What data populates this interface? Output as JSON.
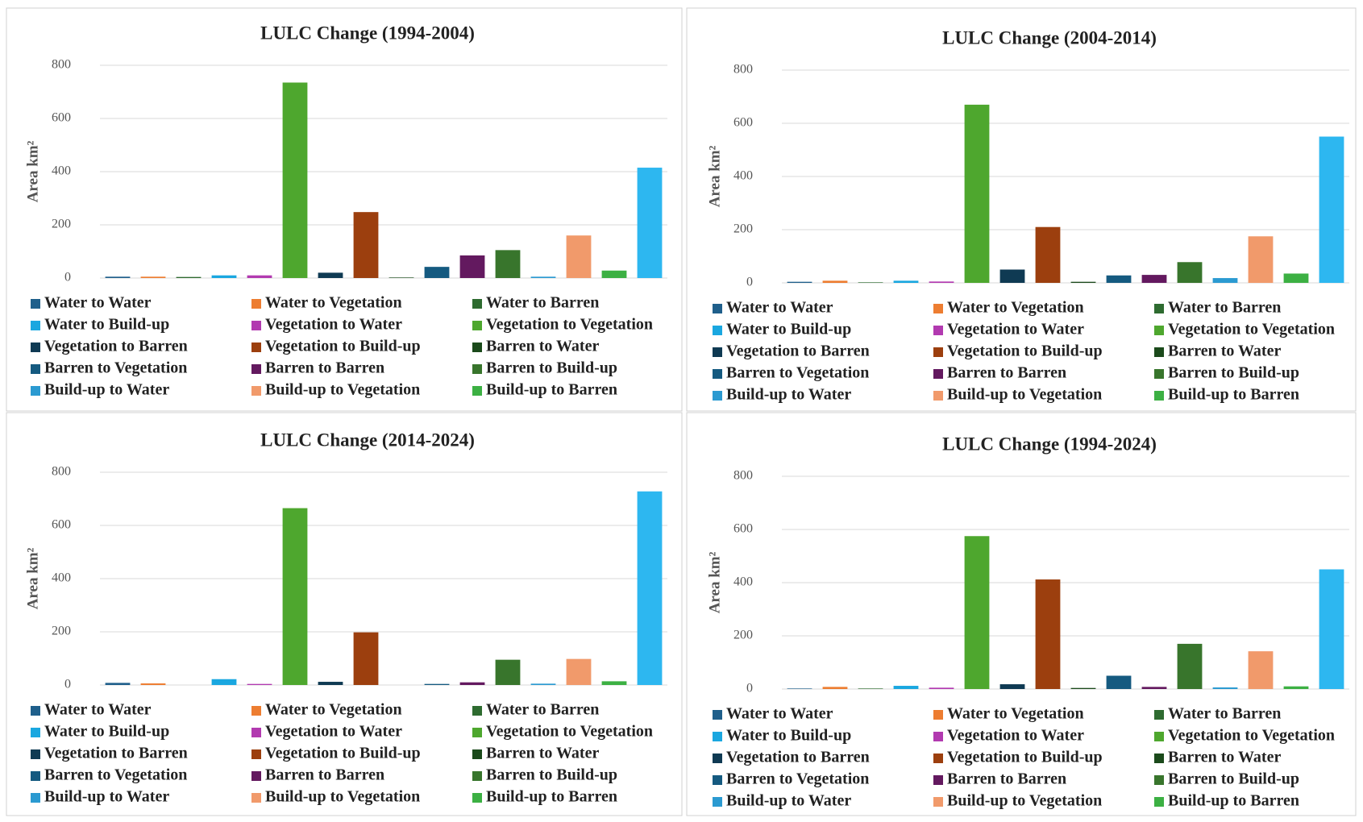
{
  "chart_data": [
    {
      "type": "bar",
      "title": "LULC Change (1994-2004)",
      "y_label": "Area km²",
      "ylim": [
        0,
        800
      ],
      "yticks": [
        0,
        200,
        400,
        600,
        800
      ],
      "grid": true,
      "series": [
        {
          "name": "Water to Water",
          "color": "#1f5f8b",
          "values": [
            5
          ]
        },
        {
          "name": "Water to Vegetation",
          "color": "#ed7d31",
          "values": [
            5
          ]
        },
        {
          "name": "Water to Barren",
          "color": "#2e6b30",
          "values": [
            4
          ]
        },
        {
          "name": "Water to Build-up",
          "color": "#1aa7e0",
          "values": [
            10
          ]
        },
        {
          "name": "Vegetation to Water",
          "color": "#b23ab0",
          "values": [
            10
          ]
        },
        {
          "name": "Vegetation to Vegetation",
          "color": "#4ea72e",
          "values": [
            735
          ]
        },
        {
          "name": "Vegetation to Barren",
          "color": "#0f3a53",
          "values": [
            20
          ]
        },
        {
          "name": "Vegetation to Build-up",
          "color": "#9c3f0e",
          "values": [
            248
          ]
        },
        {
          "name": "Barren to Water",
          "color": "#1b4a1b",
          "values": [
            2
          ]
        },
        {
          "name": "Barren to Vegetation",
          "color": "#155a80",
          "values": [
            42
          ]
        },
        {
          "name": "Barren to Barren",
          "color": "#63195f",
          "values": [
            85
          ]
        },
        {
          "name": "Barren to Build-up",
          "color": "#38752c",
          "values": [
            105
          ]
        },
        {
          "name": "Build-up to Water",
          "color": "#2b9ad1",
          "values": [
            5
          ]
        },
        {
          "name": "Build-up to Vegetation",
          "color": "#f19a6b",
          "values": [
            160
          ]
        },
        {
          "name": "Build-up to Barren",
          "color": "#3cb043",
          "values": [
            28
          ]
        },
        {
          "name": null,
          "color": "#2db7f0",
          "values": [
            415
          ]
        }
      ]
    },
    {
      "type": "bar",
      "title": "LULC Change (2004-2014)",
      "y_label": "Area km²",
      "ylim": [
        0,
        800
      ],
      "yticks": [
        0,
        200,
        400,
        600,
        800
      ],
      "grid": true,
      "series": [
        {
          "name": "Water to Water",
          "color": "#1f5f8b",
          "values": [
            4
          ]
        },
        {
          "name": "Water to Vegetation",
          "color": "#ed7d31",
          "values": [
            8
          ]
        },
        {
          "name": "Water to Barren",
          "color": "#2e6b30",
          "values": [
            2
          ]
        },
        {
          "name": "Water to Build-up",
          "color": "#1aa7e0",
          "values": [
            8
          ]
        },
        {
          "name": "Vegetation to Water",
          "color": "#b23ab0",
          "values": [
            5
          ]
        },
        {
          "name": "Vegetation to Vegetation",
          "color": "#4ea72e",
          "values": [
            670
          ]
        },
        {
          "name": "Vegetation to Barren",
          "color": "#0f3a53",
          "values": [
            50
          ]
        },
        {
          "name": "Vegetation to Build-up",
          "color": "#9c3f0e",
          "values": [
            210
          ]
        },
        {
          "name": "Barren to Water",
          "color": "#1b4a1b",
          "values": [
            4
          ]
        },
        {
          "name": "Barren to Vegetation",
          "color": "#155a80",
          "values": [
            28
          ]
        },
        {
          "name": "Barren to Barren",
          "color": "#63195f",
          "values": [
            30
          ]
        },
        {
          "name": "Barren to Build-up",
          "color": "#38752c",
          "values": [
            78
          ]
        },
        {
          "name": "Build-up to Water",
          "color": "#2b9ad1",
          "values": [
            18
          ]
        },
        {
          "name": "Build-up to Vegetation",
          "color": "#f19a6b",
          "values": [
            175
          ]
        },
        {
          "name": "Build-up to Barren",
          "color": "#3cb043",
          "values": [
            35
          ]
        },
        {
          "name": null,
          "color": "#2db7f0",
          "values": [
            550
          ]
        }
      ]
    },
    {
      "type": "bar",
      "title": "LULC Change (2014-2024)",
      "y_label": "Area km²",
      "ylim": [
        0,
        800
      ],
      "yticks": [
        0,
        200,
        400,
        600,
        800
      ],
      "grid": true,
      "series": [
        {
          "name": "Water to Water",
          "color": "#1f5f8b",
          "values": [
            8
          ]
        },
        {
          "name": "Water to Vegetation",
          "color": "#ed7d31",
          "values": [
            6
          ]
        },
        {
          "name": "Water to Barren",
          "color": "#2e6b30",
          "values": [
            0
          ]
        },
        {
          "name": "Water to Build-up",
          "color": "#1aa7e0",
          "values": [
            22
          ]
        },
        {
          "name": "Vegetation to Water",
          "color": "#b23ab0",
          "values": [
            4
          ]
        },
        {
          "name": "Vegetation to Vegetation",
          "color": "#4ea72e",
          "values": [
            665
          ]
        },
        {
          "name": "Vegetation to Barren",
          "color": "#0f3a53",
          "values": [
            12
          ]
        },
        {
          "name": "Vegetation to Build-up",
          "color": "#9c3f0e",
          "values": [
            198
          ]
        },
        {
          "name": "Barren to Water",
          "color": "#1b4a1b",
          "values": [
            0
          ]
        },
        {
          "name": "Barren to Vegetation",
          "color": "#155a80",
          "values": [
            4
          ]
        },
        {
          "name": "Barren to Barren",
          "color": "#63195f",
          "values": [
            10
          ]
        },
        {
          "name": "Barren to Build-up",
          "color": "#38752c",
          "values": [
            95
          ]
        },
        {
          "name": "Build-up to Water",
          "color": "#2b9ad1",
          "values": [
            5
          ]
        },
        {
          "name": "Build-up to Vegetation",
          "color": "#f19a6b",
          "values": [
            98
          ]
        },
        {
          "name": "Build-up to Barren",
          "color": "#3cb043",
          "values": [
            14
          ]
        },
        {
          "name": null,
          "color": "#2db7f0",
          "values": [
            728
          ]
        }
      ]
    },
    {
      "type": "bar",
      "title": "LULC Change (1994-2024)",
      "y_label": "Area km²",
      "ylim": [
        0,
        800
      ],
      "yticks": [
        0,
        200,
        400,
        600,
        800
      ],
      "grid": true,
      "series": [
        {
          "name": "Water to Water",
          "color": "#1f5f8b",
          "values": [
            2
          ]
        },
        {
          "name": "Water to Vegetation",
          "color": "#ed7d31",
          "values": [
            8
          ]
        },
        {
          "name": "Water to Barren",
          "color": "#2e6b30",
          "values": [
            2
          ]
        },
        {
          "name": "Water to Build-up",
          "color": "#1aa7e0",
          "values": [
            12
          ]
        },
        {
          "name": "Vegetation to Water",
          "color": "#b23ab0",
          "values": [
            5
          ]
        },
        {
          "name": "Vegetation to Vegetation",
          "color": "#4ea72e",
          "values": [
            575
          ]
        },
        {
          "name": "Vegetation to Barren",
          "color": "#0f3a53",
          "values": [
            18
          ]
        },
        {
          "name": "Vegetation to Build-up",
          "color": "#9c3f0e",
          "values": [
            412
          ]
        },
        {
          "name": "Barren to Water",
          "color": "#1b4a1b",
          "values": [
            4
          ]
        },
        {
          "name": "Barren to Vegetation",
          "color": "#155a80",
          "values": [
            50
          ]
        },
        {
          "name": "Barren to Barren",
          "color": "#63195f",
          "values": [
            8
          ]
        },
        {
          "name": "Barren to Build-up",
          "color": "#38752c",
          "values": [
            170
          ]
        },
        {
          "name": "Build-up to Water",
          "color": "#2b9ad1",
          "values": [
            6
          ]
        },
        {
          "name": "Build-up to Vegetation",
          "color": "#f19a6b",
          "values": [
            142
          ]
        },
        {
          "name": "Build-up to Barren",
          "color": "#3cb043",
          "values": [
            10
          ]
        },
        {
          "name": null,
          "color": "#2db7f0",
          "values": [
            450
          ]
        }
      ]
    }
  ]
}
